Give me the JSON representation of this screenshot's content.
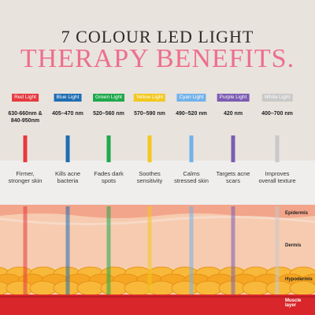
{
  "header": {
    "line1": "7 COLOUR LED LIGHT",
    "line2": "THERAPY BENEFITS."
  },
  "lights": [
    {
      "label": "Red Light",
      "wavelength": "630-660nm & 840-950nm",
      "benefit": "Firmer, stronger skin",
      "color": "#e53a3f"
    },
    {
      "label": "Blue Light",
      "wavelength": "405–470 nm",
      "benefit": "Kills acne bacteria",
      "color": "#1f6eb2"
    },
    {
      "label": "Green Light",
      "wavelength": "520–560 nm",
      "benefit": "Fades dark spots",
      "color": "#1ea94b"
    },
    {
      "label": "Yellow Light",
      "wavelength": "570–590 nm",
      "benefit": "Soothes sensitivity",
      "color": "#f2c81e"
    },
    {
      "label": "Cyan Light",
      "wavelength": "490–520 nm",
      "benefit": "Calms stressed skin",
      "color": "#72b2ea"
    },
    {
      "label": "Purple Light",
      "wavelength": "420 nm",
      "benefit": "Targets acne scars",
      "color": "#7c5cb3"
    },
    {
      "label": "White Light",
      "wavelength": "400–700 nm",
      "benefit": "Improves overall texture",
      "color": "#c9c9c9"
    }
  ],
  "layers": {
    "epidermis": "Epidermis",
    "dermis": "Dermis",
    "hypodermis": "Hypodermis",
    "muscle": "Muscle layer"
  }
}
